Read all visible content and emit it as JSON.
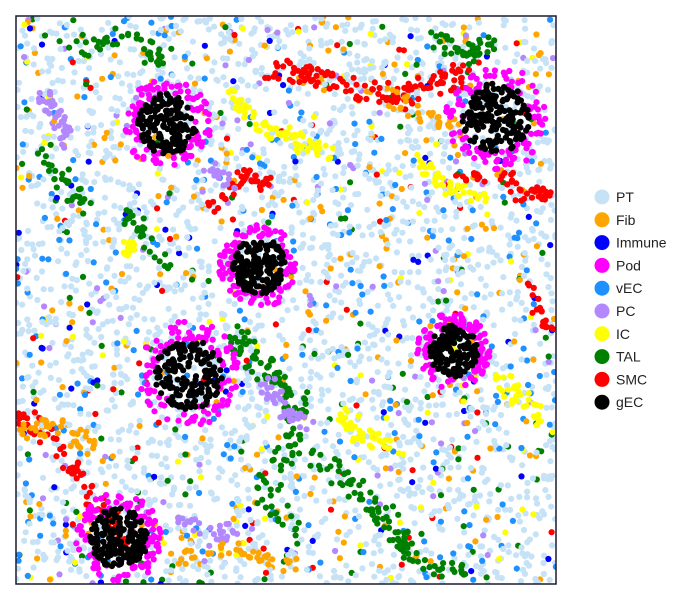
{
  "chart_data": {
    "type": "scatter",
    "title": "",
    "xlabel": "",
    "ylabel": "",
    "grid": false,
    "axes_visible": false,
    "legend_position": "right",
    "series": [
      {
        "name": "PT",
        "color": "#c6e2f7"
      },
      {
        "name": "Fib",
        "color": "#ffa500"
      },
      {
        "name": "Immune",
        "color": "#0000ff"
      },
      {
        "name": "Pod",
        "color": "#ff00ff"
      },
      {
        "name": "vEC",
        "color": "#1e90ff"
      },
      {
        "name": "PC",
        "color": "#b388ff"
      },
      {
        "name": "IC",
        "color": "#ffff00"
      },
      {
        "name": "TAL",
        "color": "#008000"
      },
      {
        "name": "SMC",
        "color": "#ff0000"
      },
      {
        "name": "gEC",
        "color": "#000000"
      }
    ],
    "clusters": [
      {
        "label": "gEC",
        "ring": "Pod",
        "x": 0.28,
        "y": 0.81,
        "r": 0.06
      },
      {
        "label": "gEC",
        "ring": "Pod",
        "x": 0.89,
        "y": 0.82,
        "r": 0.07
      },
      {
        "label": "gEC",
        "ring": "Pod",
        "x": 0.45,
        "y": 0.56,
        "r": 0.055
      },
      {
        "label": "gEC",
        "ring": "Pod",
        "x": 0.32,
        "y": 0.37,
        "r": 0.07
      },
      {
        "label": "gEC",
        "ring": "Pod",
        "x": 0.81,
        "y": 0.41,
        "r": 0.05
      },
      {
        "label": "gEC",
        "ring": "Pod",
        "x": 0.19,
        "y": 0.08,
        "r": 0.06
      }
    ]
  }
}
